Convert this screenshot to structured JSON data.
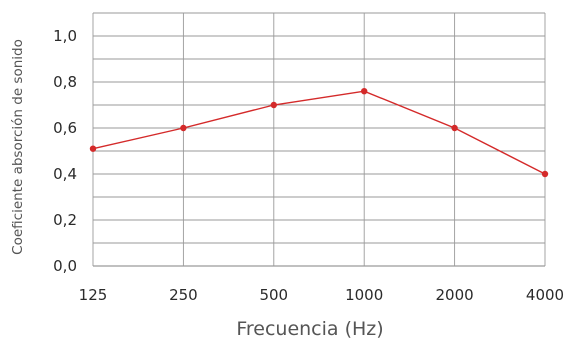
{
  "chart_data": {
    "type": "line",
    "title": "",
    "xlabel": "Frecuencia (Hz)",
    "ylabel": "Coeficiente absorción de sonido",
    "x": [
      "125",
      "250",
      "500",
      "1000",
      "2000",
      "4000"
    ],
    "x_scale": "categorical (log-spaced frequency bands)",
    "ylim": [
      0,
      1.1
    ],
    "y_ticks": [
      "0,0",
      "0,2",
      "0,4",
      "0,6",
      "0,8",
      "1,0"
    ],
    "grid": true,
    "legend": "none",
    "series": [
      {
        "values": [
          0.51,
          0.6,
          0.7,
          0.76,
          0.6,
          0.4
        ]
      }
    ],
    "colors": {
      "line": "#d42a2a",
      "grid": "#9a9a9a"
    }
  }
}
